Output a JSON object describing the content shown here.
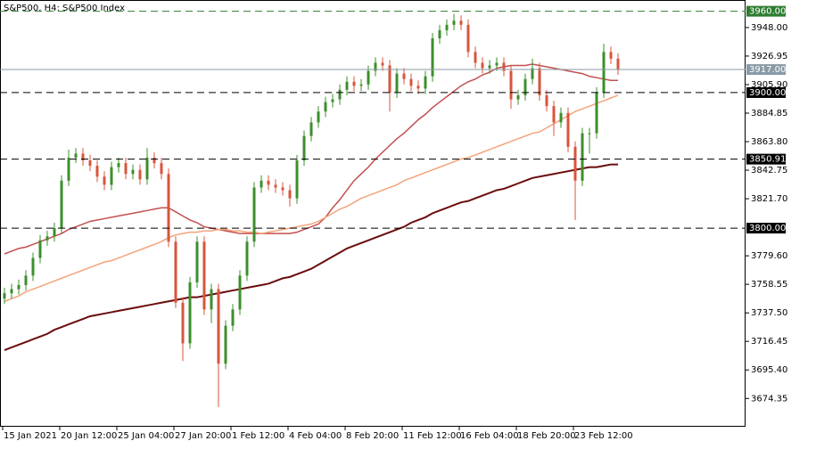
{
  "chart_data": {
    "type": "candlestick",
    "title": "S&P500, H4:  S&P500 Index",
    "categories": [
      "15 Jan 2021",
      null,
      null,
      null,
      null,
      null,
      null,
      null,
      "20 Jan 12:00",
      null,
      null,
      null,
      null,
      null,
      null,
      null,
      "25 Jan 04:00",
      null,
      null,
      null,
      null,
      null,
      null,
      null,
      "27 Jan 20:00",
      null,
      null,
      null,
      null,
      null,
      null,
      null,
      "1 Feb 12:00",
      null,
      null,
      null,
      null,
      null,
      null,
      null,
      "4 Feb 04:00",
      null,
      null,
      null,
      null,
      null,
      null,
      null,
      "8 Feb 20:00",
      null,
      null,
      null,
      null,
      null,
      null,
      null,
      "11 Feb 12:00",
      null,
      null,
      null,
      null,
      null,
      null,
      null,
      "16 Feb 04:00",
      null,
      null,
      null,
      null,
      null,
      null,
      null,
      "18 Feb 20:00",
      null,
      null,
      null,
      null,
      null,
      null,
      null,
      "23 Feb 12:00",
      null,
      null,
      null,
      null,
      null,
      null
    ],
    "open": [
      3748,
      3752,
      3755,
      3758,
      3765,
      3778,
      3791,
      3794,
      3800,
      3835,
      3852,
      3855,
      3850,
      3846,
      3838,
      3832,
      3845,
      3848,
      3840,
      3843,
      3836,
      3852,
      3848,
      3840,
      3790,
      3745,
      3715,
      3760,
      3790,
      3740,
      3755,
      3700,
      3728,
      3740,
      3765,
      3790,
      3830,
      3835,
      3832,
      3830,
      3828,
      3822,
      3850,
      3868,
      3878,
      3886,
      3893,
      3895,
      3902,
      3908,
      3905,
      3906,
      3916,
      3922,
      3920,
      3900,
      3914,
      3910,
      3905,
      3903,
      3912,
      3940,
      3946,
      3950,
      3953,
      3950,
      3930,
      3922,
      3918,
      3920,
      3922,
      3916,
      3895,
      3898,
      3910,
      3918,
      3898,
      3890,
      3878,
      3885,
      3860,
      3835,
      3870,
      3870,
      3900,
      3930,
      3925
    ],
    "high": [
      3756,
      3759,
      3762,
      3769,
      3782,
      3795,
      3798,
      3804,
      3839,
      3858,
      3859,
      3859,
      3854,
      3850,
      3842,
      3849,
      3852,
      3852,
      3847,
      3847,
      3859,
      3856,
      3852,
      3844,
      3794,
      3749,
      3764,
      3794,
      3794,
      3759,
      3759,
      3732,
      3744,
      3769,
      3794,
      3834,
      3839,
      3839,
      3836,
      3834,
      3832,
      3854,
      3872,
      3882,
      3890,
      3897,
      3899,
      3906,
      3912,
      3912,
      3910,
      3920,
      3926,
      3926,
      3924,
      3918,
      3918,
      3914,
      3909,
      3916,
      3944,
      3950,
      3954,
      3958,
      3957,
      3954,
      3934,
      3926,
      3924,
      3926,
      3926,
      3920,
      3902,
      3914,
      3925,
      3922,
      3902,
      3894,
      3889,
      3889,
      3864,
      3874,
      3874,
      3904,
      3936,
      3934,
      3929
    ],
    "low": [
      3744,
      3748,
      3751,
      3754,
      3761,
      3774,
      3787,
      3790,
      3796,
      3831,
      3848,
      3846,
      3842,
      3834,
      3828,
      3828,
      3841,
      3836,
      3836,
      3832,
      3832,
      3844,
      3836,
      3786,
      3741,
      3702,
      3711,
      3756,
      3736,
      3730,
      3668,
      3696,
      3724,
      3736,
      3761,
      3786,
      3826,
      3828,
      3826,
      3824,
      3816,
      3818,
      3846,
      3864,
      3874,
      3882,
      3889,
      3891,
      3898,
      3901,
      3901,
      3902,
      3912,
      3916,
      3886,
      3896,
      3906,
      3901,
      3899,
      3899,
      3908,
      3936,
      3942,
      3946,
      3946,
      3926,
      3918,
      3914,
      3914,
      3916,
      3912,
      3888,
      3891,
      3894,
      3906,
      3894,
      3886,
      3868,
      3874,
      3856,
      3806,
      3831,
      3855,
      3866,
      3896,
      3921,
      3913
    ],
    "close": [
      3752,
      3755,
      3758,
      3765,
      3778,
      3791,
      3794,
      3800,
      3835,
      3852,
      3855,
      3850,
      3846,
      3838,
      3832,
      3845,
      3848,
      3840,
      3843,
      3836,
      3852,
      3848,
      3840,
      3790,
      3745,
      3715,
      3760,
      3790,
      3740,
      3755,
      3700,
      3728,
      3740,
      3765,
      3790,
      3830,
      3835,
      3832,
      3830,
      3828,
      3822,
      3850,
      3868,
      3878,
      3886,
      3893,
      3895,
      3902,
      3908,
      3905,
      3906,
      3916,
      3922,
      3920,
      3900,
      3914,
      3910,
      3905,
      3903,
      3912,
      3940,
      3946,
      3950,
      3953,
      3950,
      3930,
      3922,
      3918,
      3920,
      3922,
      3916,
      3895,
      3898,
      3910,
      3918,
      3898,
      3890,
      3878,
      3885,
      3860,
      3835,
      3870,
      3870,
      3900,
      3930,
      3925,
      3917
    ],
    "up_color": "#3c8f2c",
    "down_color": "#d8553c",
    "moving_averages": [
      {
        "color": "#c44f4f",
        "values": [
          3781,
          3783,
          3785,
          3786,
          3788,
          3790,
          3792,
          3794,
          3796,
          3799,
          3801,
          3803,
          3805,
          3806,
          3807,
          3808,
          3809,
          3810,
          3811,
          3812,
          3813,
          3814,
          3815,
          3815,
          3812,
          3809,
          3806,
          3804,
          3801,
          3800,
          3799,
          3798,
          3797,
          3796,
          3796,
          3796,
          3796,
          3796,
          3796,
          3796,
          3796,
          3797,
          3799,
          3801,
          3803,
          3808,
          3815,
          3821,
          3828,
          3835,
          3840,
          3845,
          3851,
          3856,
          3861,
          3866,
          3870,
          3875,
          3880,
          3884,
          3889,
          3893,
          3897,
          3901,
          3905,
          3908,
          3910,
          3913,
          3915,
          3918,
          3919,
          3920,
          3920,
          3920,
          3921,
          3920,
          3919,
          3918,
          3917,
          3916,
          3915,
          3914,
          3912,
          3911,
          3910,
          3909,
          3909
        ]
      },
      {
        "color": "#f4a47c",
        "values": [
          3746,
          3748,
          3750,
          3753,
          3755,
          3757,
          3759,
          3761,
          3763,
          3765,
          3767,
          3769,
          3771,
          3773,
          3775,
          3776,
          3778,
          3780,
          3782,
          3784,
          3786,
          3788,
          3790,
          3793,
          3795,
          3796,
          3797,
          3797,
          3798,
          3798,
          3799,
          3799,
          3798,
          3798,
          3797,
          3797,
          3796,
          3797,
          3798,
          3799,
          3800,
          3801,
          3802,
          3803,
          3805,
          3808,
          3811,
          3814,
          3816,
          3819,
          3822,
          3824,
          3826,
          3828,
          3830,
          3832,
          3835,
          3837,
          3839,
          3841,
          3843,
          3845,
          3847,
          3849,
          3851,
          3852,
          3854,
          3856,
          3858,
          3860,
          3862,
          3864,
          3866,
          3868,
          3870,
          3871,
          3874,
          3877,
          3880,
          3883,
          3886,
          3888,
          3890,
          3892,
          3894,
          3896,
          3898
        ]
      },
      {
        "color": "#6b0c0c",
        "values": [
          3710,
          3712,
          3714,
          3716,
          3718,
          3720,
          3722,
          3725,
          3727,
          3729,
          3731,
          3733,
          3735,
          3736,
          3737,
          3738,
          3739,
          3740,
          3741,
          3742,
          3743,
          3744,
          3745,
          3746,
          3747,
          3748,
          3749,
          3749,
          3750,
          3751,
          3752,
          3753,
          3754,
          3755,
          3756,
          3757,
          3758,
          3759,
          3761,
          3763,
          3764,
          3766,
          3768,
          3770,
          3773,
          3776,
          3779,
          3782,
          3785,
          3787,
          3789,
          3791,
          3793,
          3795,
          3797,
          3799,
          3801,
          3804,
          3806,
          3808,
          3811,
          3813,
          3815,
          3817,
          3819,
          3820,
          3822,
          3824,
          3826,
          3828,
          3829,
          3831,
          3833,
          3835,
          3837,
          3838,
          3839,
          3840,
          3841,
          3842,
          3843,
          3844,
          3845,
          3845,
          3846,
          3847,
          3847
        ]
      }
    ],
    "levels": [
      {
        "value": 3960,
        "label": "3960.00",
        "color": "#2e7d32"
      },
      {
        "value": 3900,
        "label": "3900.00",
        "color": "#000000"
      },
      {
        "value": 3850.91,
        "label": "3850.91",
        "color": "#000000"
      },
      {
        "value": 3800,
        "label": "3800.00",
        "color": "#000000"
      }
    ],
    "last_price": {
      "value": 3917,
      "label": "3917.00",
      "color": "#8a9aa6"
    },
    "ylim": [
      3653.5,
      3968.3
    ],
    "yticks": [
      {
        "value": 3948,
        "label": "3948.00"
      },
      {
        "value": 3926.95,
        "label": "3926.95"
      },
      {
        "value": 3905.9,
        "label": "3905.90"
      },
      {
        "value": 3884.85,
        "label": "3884.85"
      },
      {
        "value": 3863.8,
        "label": "3863.80"
      },
      {
        "value": 3842.75,
        "label": "3842.75"
      },
      {
        "value": 3821.7,
        "label": "3821.70"
      },
      {
        "value": 3779.6,
        "label": "3779.60"
      },
      {
        "value": 3758.55,
        "label": "3758.55"
      },
      {
        "value": 3737.5,
        "label": "3737.50"
      },
      {
        "value": 3716.45,
        "label": "3716.45"
      },
      {
        "value": 3695.4,
        "label": "3695.40"
      },
      {
        "value": 3674.35,
        "label": "3674.35"
      }
    ]
  }
}
